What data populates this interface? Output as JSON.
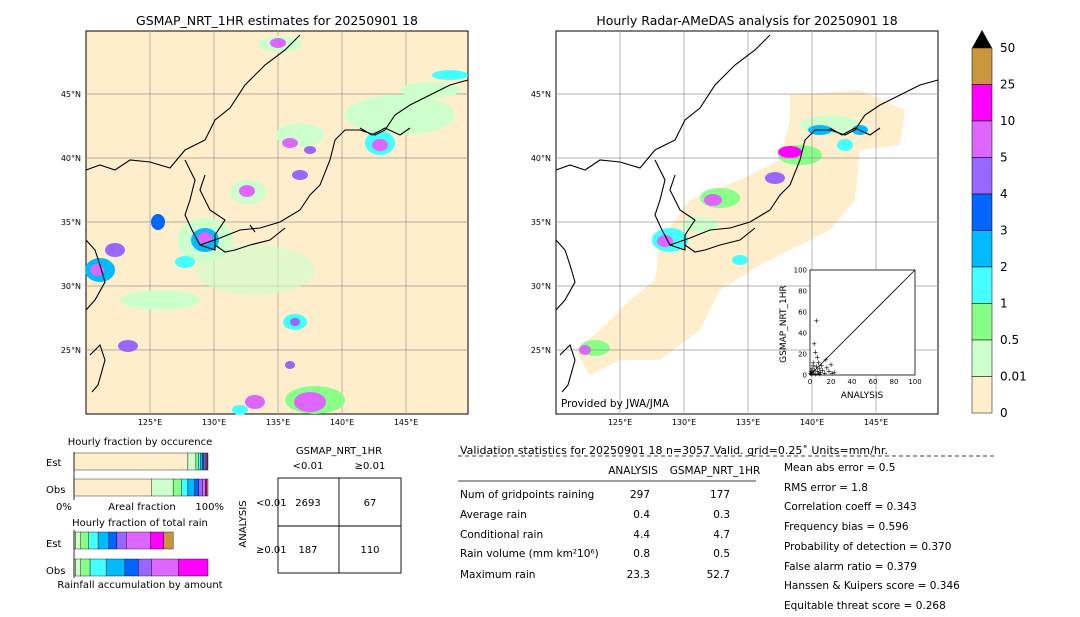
{
  "map_left": {
    "title": "GSMAP_NRT_1HR estimates for 20250901 18",
    "lat_labels": [
      "45°N",
      "40°N",
      "35°N",
      "30°N",
      "25°N"
    ],
    "lon_labels": [
      "125°E",
      "130°E",
      "135°E",
      "140°E",
      "145°E"
    ]
  },
  "map_right": {
    "title": "Hourly Radar-AMeDAS analysis for 20250901 18",
    "lat_labels": [
      "45°N",
      "40°N",
      "35°N",
      "30°N",
      "25°N"
    ],
    "lon_labels": [
      "125°E",
      "130°E",
      "135°E",
      "140°E",
      "145°E"
    ],
    "credit": "Provided by JWA/JMA"
  },
  "colorbar": {
    "labels": [
      "50",
      "25",
      "10",
      "5",
      "4",
      "3",
      "2",
      "1",
      "0.5",
      "0.01",
      "0"
    ],
    "colors": [
      "#c8963c",
      "#ff00ff",
      "#dd66ff",
      "#9966ff",
      "#0066ff",
      "#00bbff",
      "#44ffff",
      "#88ff88",
      "#ccffcc",
      "#ffeecc"
    ],
    "extend_color": "#000000"
  },
  "scatter": {
    "xlabel": "ANALYSIS",
    "ylabel": "GSMAP_NRT_1HR",
    "ticks": [
      "0",
      "20",
      "40",
      "60",
      "80",
      "100"
    ],
    "ylim": [
      0,
      100
    ],
    "xlim": [
      0,
      100
    ]
  },
  "fraction_occurrence": {
    "title": "Hourly fraction by occurence",
    "row_est": "Est",
    "row_obs": "Obs",
    "axis_left": "0%",
    "axis_mid": "Areal fraction",
    "axis_right": "100%"
  },
  "fraction_total": {
    "title": "Hourly fraction of total rain",
    "row_est": "Est",
    "row_obs": "Obs",
    "footer": "Rainfall accumulation by amount"
  },
  "contingency": {
    "title": "GSMAP_NRT_1HR",
    "col_lt": "<0.01",
    "col_ge": "≥0.01",
    "row_axis": "ANALYSIS",
    "row_lt": "<0.01",
    "row_ge": "≥0.01",
    "cells": [
      "2693",
      "67",
      "187",
      "110"
    ]
  },
  "validation": {
    "header": "Validation statistics for 20250901 18  n=3057 Valid. grid=0.25˚ Units=mm/hr.",
    "col_analysis": "ANALYSIS",
    "col_gsmap": "GSMAP_NRT_1HR",
    "rows": [
      {
        "label": "Num of gridpoints raining",
        "analysis": "297",
        "gsmap": "177"
      },
      {
        "label": "Average rain",
        "analysis": "0.4",
        "gsmap": "0.3"
      },
      {
        "label": "Conditional rain",
        "analysis": "4.4",
        "gsmap": "4.7"
      },
      {
        "label": "Rain volume (mm km²10⁶)",
        "analysis": "0.8",
        "gsmap": "0.5"
      },
      {
        "label": "Maximum rain",
        "analysis": "23.3",
        "gsmap": "52.7"
      }
    ],
    "scores": [
      "Mean abs error =    0.5",
      "RMS error =    1.8",
      "Correlation coeff =  0.343",
      "Frequency bias =  0.596",
      "Probability of detection =  0.370",
      "False alarm ratio =  0.379",
      "Hanssen & Kuipers score =  0.346",
      "Equitable threat score =  0.268"
    ]
  },
  "chart_data": [
    {
      "type": "scatter",
      "xlabel": "ANALYSIS",
      "ylabel": "GSMAP_NRT_1HR",
      "xlim": [
        0,
        100
      ],
      "ylim": [
        0,
        100
      ],
      "points": [
        [
          1,
          1
        ],
        [
          2,
          3
        ],
        [
          3,
          2
        ],
        [
          4,
          5
        ],
        [
          5,
          1
        ],
        [
          6,
          8
        ],
        [
          7,
          4
        ],
        [
          8,
          2
        ],
        [
          9,
          6
        ],
        [
          10,
          3
        ],
        [
          12,
          5
        ],
        [
          14,
          2
        ],
        [
          16,
          7
        ],
        [
          18,
          4
        ],
        [
          20,
          10
        ],
        [
          21,
          2
        ],
        [
          3,
          12
        ],
        [
          5,
          22
        ],
        [
          4,
          30
        ],
        [
          6,
          52
        ],
        [
          2,
          6
        ],
        [
          1,
          4
        ],
        [
          0.5,
          2
        ],
        [
          8,
          12
        ],
        [
          11,
          9
        ],
        [
          23,
          3
        ],
        [
          15,
          15
        ],
        [
          3,
          9
        ],
        [
          7,
          17
        ],
        [
          9,
          1
        ]
      ]
    },
    {
      "type": "bar",
      "title": "Hourly fraction by occurence",
      "categories": [
        "Est",
        "Obs"
      ],
      "series": [
        {
          "values": [
            0.85,
            0.58
          ],
          "color": "#ffeecc"
        },
        {
          "values": [
            0.06,
            0.16
          ],
          "color": "#ccffcc"
        },
        {
          "values": [
            0.02,
            0.06
          ],
          "color": "#88ff88"
        },
        {
          "values": [
            0.015,
            0.05
          ],
          "color": "#44ffff"
        },
        {
          "values": [
            0.015,
            0.05
          ],
          "color": "#00bbff"
        },
        {
          "values": [
            0.01,
            0.03
          ],
          "color": "#0066ff"
        },
        {
          "values": [
            0.01,
            0.03
          ],
          "color": "#9966ff"
        },
        {
          "values": [
            0.01,
            0.02
          ],
          "color": "#dd66ff"
        },
        {
          "values": [
            0.005,
            0.01
          ],
          "color": "#ff00ff"
        },
        {
          "values": [
            0.005,
            0.01
          ],
          "color": "#c8963c"
        }
      ]
    },
    {
      "type": "bar",
      "title": "Hourly fraction of total rain",
      "categories": [
        "Est",
        "Obs"
      ],
      "series": [
        {
          "values": [
            0.01,
            0.01
          ],
          "color": "#ffeecc"
        },
        {
          "values": [
            0.04,
            0.04
          ],
          "color": "#ccffcc"
        },
        {
          "values": [
            0.06,
            0.07
          ],
          "color": "#88ff88"
        },
        {
          "values": [
            0.07,
            0.12
          ],
          "color": "#44ffff"
        },
        {
          "values": [
            0.08,
            0.14
          ],
          "color": "#00bbff"
        },
        {
          "values": [
            0.06,
            0.1
          ],
          "color": "#0066ff"
        },
        {
          "values": [
            0.07,
            0.1
          ],
          "color": "#9966ff"
        },
        {
          "values": [
            0.18,
            0.2
          ],
          "color": "#dd66ff"
        },
        {
          "values": [
            0.1,
            0.22
          ],
          "color": "#ff00ff"
        },
        {
          "values": [
            0.07,
            0.0
          ],
          "color": "#c8963c"
        }
      ]
    }
  ]
}
